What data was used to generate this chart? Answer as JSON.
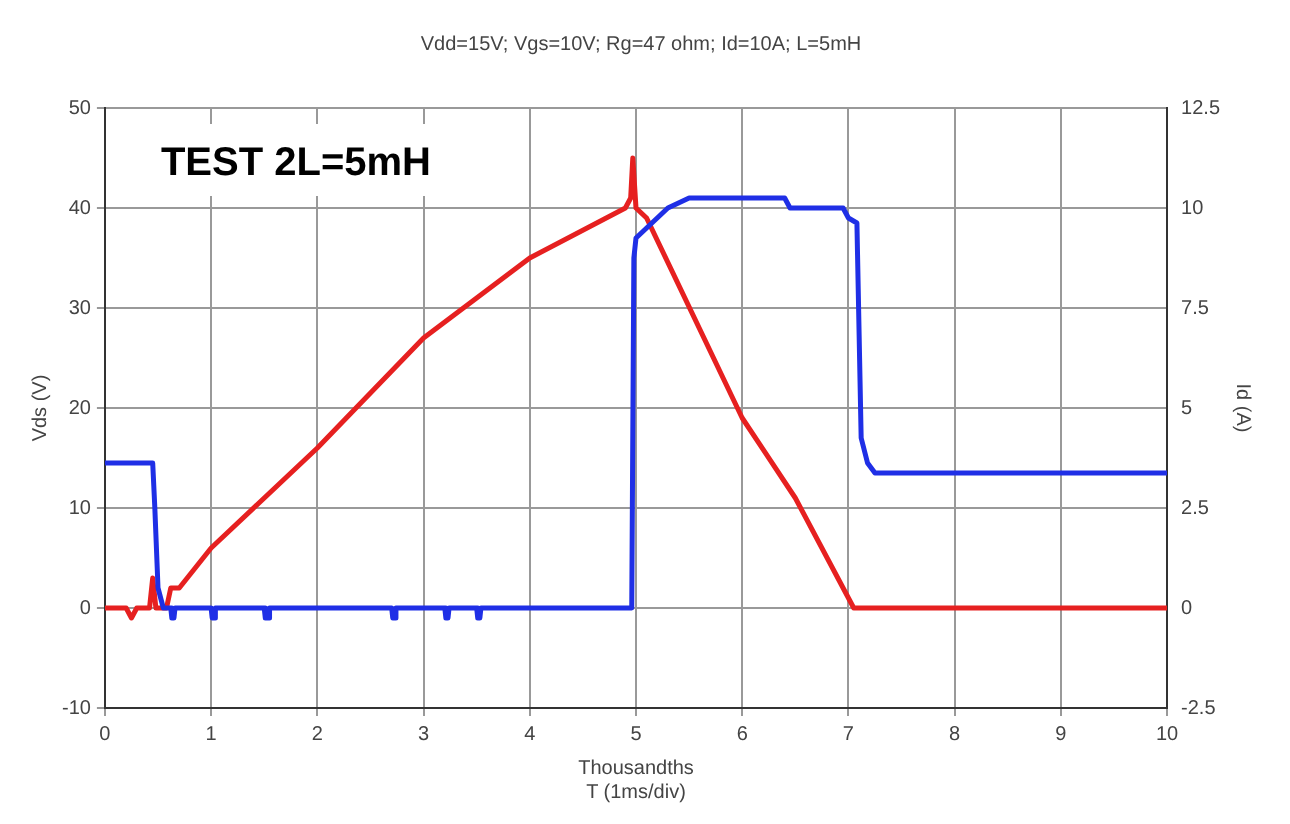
{
  "chart_data": {
    "type": "line",
    "title": "Vdd=15V; Vgs=10V; Rg=47 ohm; Id=10A; L=5mH",
    "xlabel": "Thousandths\nT (1ms/div)",
    "ylabel": "Vds (V)",
    "y2label": "Id (A)",
    "annotations": [
      "TEST 2L=5mH"
    ],
    "series": [
      {
        "color": "#1f2fe6",
        "x": [
          0,
          0.45,
          0.47,
          0.5,
          0.55,
          0.62,
          0.63,
          0.65,
          0.66,
          1.0,
          1.01,
          1.03,
          1.04,
          1.5,
          1.51,
          1.54,
          1.55,
          2.7,
          2.71,
          2.73,
          2.74,
          3.2,
          3.21,
          3.23,
          3.24,
          3.5,
          3.51,
          3.53,
          3.54,
          4.96,
          4.98,
          5.0,
          5.1,
          5.3,
          5.5,
          6.4,
          6.45,
          6.95,
          7.0,
          7.08,
          7.12,
          7.18,
          7.25,
          10
        ],
        "values": [
          14.5,
          14.5,
          10,
          2,
          0,
          0,
          -1,
          -1,
          0,
          0,
          -1,
          -1,
          0,
          0,
          -1,
          -1,
          0,
          0,
          -1,
          -1,
          0,
          0,
          -1,
          -1,
          0,
          0,
          -1,
          -1,
          0,
          0,
          35,
          37,
          38,
          40,
          41,
          41,
          40,
          40,
          39,
          38.5,
          17,
          14.5,
          13.5,
          13.5
        ]
      },
      {
        "color": "#e62020",
        "axis": "y2",
        "x": [
          0,
          0.2,
          0.25,
          0.3,
          0.42,
          0.45,
          0.48,
          0.58,
          0.62,
          0.7,
          1,
          2,
          3,
          4,
          4.9,
          4.95,
          4.97,
          5.0,
          5.1,
          6,
          6.5,
          7,
          7.05,
          10
        ],
        "values": [
          0,
          0,
          -0.25,
          0,
          0,
          0.75,
          0,
          0,
          0.5,
          0.5,
          1.5,
          4,
          6.75,
          8.75,
          10,
          10.25,
          11.25,
          10,
          9.75,
          4.75,
          2.75,
          0.25,
          0,
          0
        ]
      }
    ],
    "xlim": [
      0,
      10
    ],
    "xticks": [
      0,
      1,
      2,
      3,
      4,
      5,
      6,
      7,
      8,
      9,
      10
    ],
    "ylim": [
      -10,
      50
    ],
    "yticks": [
      -10,
      0,
      10,
      20,
      30,
      40,
      50
    ],
    "y2lim": [
      -2.5,
      12.5
    ],
    "y2ticks": [
      -2.5,
      0,
      2.5,
      5,
      7.5,
      10,
      12.5
    ],
    "grid": true,
    "marker": "none",
    "line_style": "solid"
  }
}
